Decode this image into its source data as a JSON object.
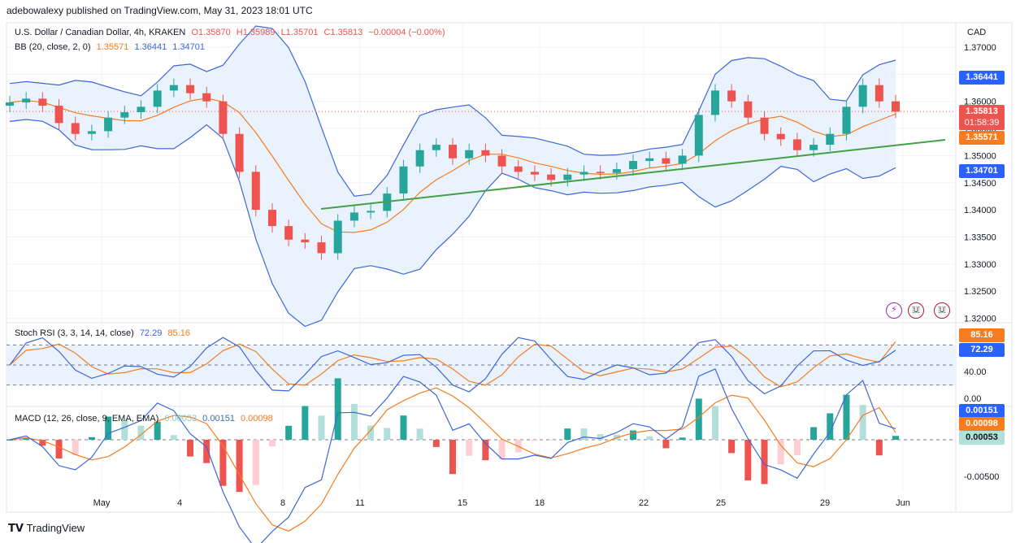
{
  "header": {
    "published_by": "adebowalexy published on TradingView.com, May 31, 2023 18:01 UTC",
    "symbol": "U.S. Dollar / Canadian Dollar, 4h, KRAKEN",
    "open": "O1.35870",
    "high": "H1.35989",
    "low": "L1.35701",
    "close": "C1.35813",
    "change": "−0.00004 (−0.00%)",
    "currency": "CAD"
  },
  "bb_legend": {
    "label": "BB (20, close, 2, 0)",
    "basis": "1.35571",
    "upper": "1.36441",
    "lower": "1.34701"
  },
  "stoch_legend": {
    "label": "Stoch RSI (3, 3, 14, 14, close)",
    "k": "72.29",
    "d": "85.16"
  },
  "macd_legend": {
    "label": "MACD (12, 26, close, 9, EMA, EMA)",
    "hist": "0.00053",
    "macd": "0.00151",
    "signal": "0.00098"
  },
  "price_badges": {
    "upper": "1.36441",
    "last": "1.35813",
    "countdown": "01:58:39",
    "basis": "1.35571",
    "lower": "1.34701",
    "stoch_d": "85.16",
    "stoch_k": "72.29",
    "macd_line": "0.00151",
    "macd_signal": "0.00098",
    "macd_hist": "0.00053"
  },
  "colors": {
    "up": "#26a69a",
    "down": "#ef5350",
    "bb_band": "#3d66d9",
    "bb_fill": "#eaf3fd",
    "basis": "#f57c1f",
    "trend": "#43a047",
    "rsi_k": "#3d66d9",
    "rsi_d": "#f57c1f"
  },
  "footer": {
    "brand": "TradingView"
  },
  "chart_data": {
    "type": "candlestick",
    "title": "U.S. Dollar / Canadian Dollar, 4h, KRAKEN",
    "price_axis": [
      "1.37000",
      "1.36500",
      "1.36000",
      "1.35500",
      "1.35000",
      "1.34500",
      "1.34000",
      "1.33500",
      "1.33000",
      "1.32500",
      "1.32000"
    ],
    "time_axis": [
      "May",
      "4",
      "8",
      "11",
      "15",
      "18",
      "22",
      "25",
      "29",
      "Jun"
    ],
    "ylim": [
      1.3195,
      1.3728
    ],
    "close_series_approx": [
      1.3598,
      1.3605,
      1.3592,
      1.356,
      1.354,
      1.3545,
      1.357,
      1.358,
      1.359,
      1.362,
      1.363,
      1.3615,
      1.36,
      1.354,
      1.347,
      1.34,
      1.337,
      1.3345,
      1.334,
      1.332,
      1.338,
      1.3395,
      1.3398,
      1.343,
      1.348,
      1.351,
      1.352,
      1.3495,
      1.351,
      1.35,
      1.348,
      1.347,
      1.3465,
      1.3455,
      1.3465,
      1.347,
      1.3468,
      1.3475,
      1.349,
      1.3495,
      1.3485,
      1.35,
      1.3575,
      1.362,
      1.36,
      1.357,
      1.354,
      1.353,
      1.351,
      1.352,
      1.354,
      1.359,
      1.363,
      1.36,
      1.3581
    ],
    "stoch_rsi": {
      "axis": [
        "85.16",
        "72.29",
        "40.00",
        "0.00"
      ],
      "k_last": 72.29,
      "d_last": 85.16
    },
    "macd": {
      "axis": [
        "0.00151",
        "0.00098",
        "0.00053",
        "-0.00500"
      ],
      "macd_last": 0.00151,
      "signal_last": 0.00098,
      "hist_last": 0.00053
    }
  }
}
